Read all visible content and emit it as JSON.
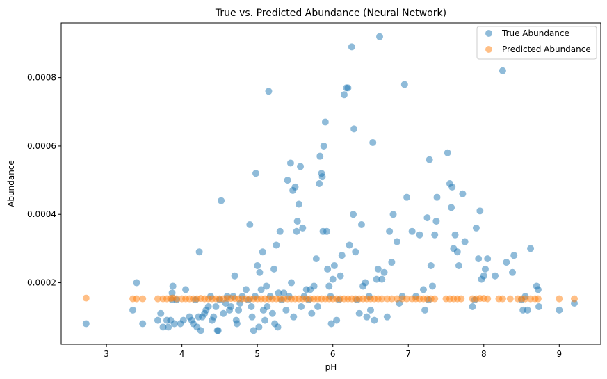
{
  "chart_data": {
    "type": "scatter",
    "title": "True vs. Predicted Abundance (Neural Network)",
    "xlabel": "pH",
    "ylabel": "Abundance",
    "xlim": [
      2.4,
      9.55
    ],
    "ylim": [
      2e-05,
      0.00096
    ],
    "xticks": [
      {
        "value": 3,
        "label": "3"
      },
      {
        "value": 4,
        "label": "4"
      },
      {
        "value": 5,
        "label": "5"
      },
      {
        "value": 6,
        "label": "6"
      },
      {
        "value": 7,
        "label": "7"
      },
      {
        "value": 8,
        "label": "8"
      },
      {
        "value": 9,
        "label": "9"
      }
    ],
    "yticks": [
      {
        "value": 0.0002,
        "label": "0.0002"
      },
      {
        "value": 0.0004,
        "label": "0.0004"
      },
      {
        "value": 0.0006,
        "label": "0.0006"
      },
      {
        "value": 0.0008,
        "label": "0.0008"
      }
    ],
    "grid": false,
    "legend_position": "top-right",
    "series": [
      {
        "name": "True Abundance",
        "color": "#1f77b4",
        "points": [
          [
            2.73,
            8e-05
          ],
          [
            3.35,
            0.00012
          ],
          [
            3.4,
            0.0002
          ],
          [
            3.48,
            8e-05
          ],
          [
            3.68,
            9e-05
          ],
          [
            3.72,
            0.00011
          ],
          [
            3.75,
            7e-05
          ],
          [
            3.8,
            9e-05
          ],
          [
            3.82,
            7e-05
          ],
          [
            3.85,
            9e-05
          ],
          [
            3.87,
            0.00015
          ],
          [
            3.87,
            0.00017
          ],
          [
            3.88,
            0.00019
          ],
          [
            3.9,
            8e-05
          ],
          [
            3.93,
            0.00015
          ],
          [
            3.98,
            8e-05
          ],
          [
            4.02,
            9e-05
          ],
          [
            4.05,
            0.00018
          ],
          [
            4.1,
            0.0001
          ],
          [
            4.13,
            9e-05
          ],
          [
            4.15,
            8e-05
          ],
          [
            4.18,
            0.00015
          ],
          [
            4.2,
            7e-05
          ],
          [
            4.22,
            0.0001
          ],
          [
            4.23,
            0.00029
          ],
          [
            4.25,
            6e-05
          ],
          [
            4.27,
            0.0001
          ],
          [
            4.3,
            0.00011
          ],
          [
            4.32,
            0.00012
          ],
          [
            4.35,
            0.00013
          ],
          [
            4.38,
            0.00016
          ],
          [
            4.4,
            9e-05
          ],
          [
            4.42,
            0.0001
          ],
          [
            4.45,
            0.00013
          ],
          [
            4.47,
            6e-05
          ],
          [
            4.48,
            6e-05
          ],
          [
            4.5,
            0.00015
          ],
          [
            4.52,
            0.00044
          ],
          [
            4.55,
            0.00011
          ],
          [
            4.58,
            0.00014
          ],
          [
            4.6,
            0.00016
          ],
          [
            4.63,
            0.00012
          ],
          [
            4.65,
            0.00013
          ],
          [
            4.68,
            0.00016
          ],
          [
            4.7,
            0.00022
          ],
          [
            4.72,
            9e-05
          ],
          [
            4.73,
            8e-05
          ],
          [
            4.75,
            0.00012
          ],
          [
            4.77,
            0.00014
          ],
          [
            4.8,
            0.00016
          ],
          [
            4.85,
            0.00018
          ],
          [
            4.88,
            0.00015
          ],
          [
            4.9,
            0.00037
          ],
          [
            4.92,
            0.00013
          ],
          [
            4.93,
            0.0001
          ],
          [
            4.95,
            6e-05
          ],
          [
            4.97,
            0.00016
          ],
          [
            4.98,
            0.00052
          ],
          [
            5.0,
            0.00025
          ],
          [
            5.02,
            7e-05
          ],
          [
            5.03,
            0.00023
          ],
          [
            5.05,
            0.00018
          ],
          [
            5.07,
            0.00029
          ],
          [
            5.08,
            0.00012
          ],
          [
            5.1,
            9e-05
          ],
          [
            5.12,
            0.00019
          ],
          [
            5.13,
            0.00013
          ],
          [
            5.15,
            0.00076
          ],
          [
            5.17,
            0.00016
          ],
          [
            5.2,
            0.00011
          ],
          [
            5.22,
            0.00024
          ],
          [
            5.23,
            8e-05
          ],
          [
            5.25,
            0.00031
          ],
          [
            5.27,
            7e-05
          ],
          [
            5.28,
            0.00017
          ],
          [
            5.3,
            0.00035
          ],
          [
            5.32,
            0.00015
          ],
          [
            5.35,
            0.00017
          ],
          [
            5.38,
            0.00012
          ],
          [
            5.4,
            0.0005
          ],
          [
            5.42,
            0.00016
          ],
          [
            5.44,
            0.00055
          ],
          [
            5.45,
            0.0002
          ],
          [
            5.47,
            0.00047
          ],
          [
            5.48,
            0.0001
          ],
          [
            5.5,
            0.00048
          ],
          [
            5.52,
            0.00035
          ],
          [
            5.53,
            0.00038
          ],
          [
            5.55,
            0.00043
          ],
          [
            5.57,
            0.00054
          ],
          [
            5.58,
            0.00013
          ],
          [
            5.6,
            0.00036
          ],
          [
            5.62,
            0.00016
          ],
          [
            5.65,
            0.00018
          ],
          [
            5.68,
            0.00015
          ],
          [
            5.7,
            0.00018
          ],
          [
            5.72,
            0.00011
          ],
          [
            5.75,
            0.00019
          ],
          [
            5.78,
            0.00027
          ],
          [
            5.8,
            0.00013
          ],
          [
            5.82,
            0.00049
          ],
          [
            5.83,
            0.00057
          ],
          [
            5.85,
            0.00052
          ],
          [
            5.86,
            0.00051
          ],
          [
            5.87,
            0.00035
          ],
          [
            5.88,
            0.0006
          ],
          [
            5.9,
            0.00067
          ],
          [
            5.92,
            0.00035
          ],
          [
            5.93,
            0.00024
          ],
          [
            5.95,
            0.00019
          ],
          [
            5.97,
            0.00016
          ],
          [
            5.98,
            8e-05
          ],
          [
            6.0,
            0.00021
          ],
          [
            6.02,
            0.00025
          ],
          [
            6.05,
            9e-05
          ],
          [
            6.08,
            0.00015
          ],
          [
            6.1,
            0.00022
          ],
          [
            6.12,
            0.00028
          ],
          [
            6.15,
            0.00075
          ],
          [
            6.18,
            0.00077
          ],
          [
            6.2,
            0.00077
          ],
          [
            6.22,
            0.00031
          ],
          [
            6.25,
            0.00089
          ],
          [
            6.27,
            0.0004
          ],
          [
            6.28,
            0.00065
          ],
          [
            6.3,
            0.00029
          ],
          [
            6.32,
            0.00015
          ],
          [
            6.35,
            0.00011
          ],
          [
            6.38,
            0.00037
          ],
          [
            6.4,
            0.00019
          ],
          [
            6.43,
            0.0002
          ],
          [
            6.45,
            0.0001
          ],
          [
            6.48,
            0.00016
          ],
          [
            6.5,
            0.00012
          ],
          [
            6.53,
            0.00061
          ],
          [
            6.55,
            9e-05
          ],
          [
            6.58,
            0.00021
          ],
          [
            6.6,
            0.00024
          ],
          [
            6.62,
            0.00092
          ],
          [
            6.65,
            0.00021
          ],
          [
            6.68,
            0.00023
          ],
          [
            6.72,
            0.0001
          ],
          [
            6.75,
            0.00035
          ],
          [
            6.78,
            0.00026
          ],
          [
            6.8,
            0.0004
          ],
          [
            6.85,
            0.00032
          ],
          [
            6.88,
            0.00014
          ],
          [
            6.92,
            0.00016
          ],
          [
            6.95,
            0.00078
          ],
          [
            6.98,
            0.00045
          ],
          [
            7.05,
            0.00035
          ],
          [
            7.1,
            0.00016
          ],
          [
            7.15,
            0.00034
          ],
          [
            7.2,
            0.00018
          ],
          [
            7.22,
            0.00012
          ],
          [
            7.25,
            0.00039
          ],
          [
            7.27,
            0.00015
          ],
          [
            7.28,
            0.00056
          ],
          [
            7.3,
            0.00025
          ],
          [
            7.32,
            0.00019
          ],
          [
            7.35,
            0.00034
          ],
          [
            7.37,
            0.00038
          ],
          [
            7.38,
            0.00045
          ],
          [
            7.52,
            0.00058
          ],
          [
            7.55,
            0.00049
          ],
          [
            7.57,
            0.00042
          ],
          [
            7.58,
            0.00048
          ],
          [
            7.6,
            0.0003
          ],
          [
            7.62,
            0.00034
          ],
          [
            7.65,
            0.00029
          ],
          [
            7.67,
            0.00025
          ],
          [
            7.72,
            0.00046
          ],
          [
            7.75,
            0.00032
          ],
          [
            7.85,
            0.00013
          ],
          [
            7.88,
            0.00015
          ],
          [
            7.9,
            0.00036
          ],
          [
            7.93,
            0.00027
          ],
          [
            7.95,
            0.00041
          ],
          [
            7.97,
            0.00021
          ],
          [
            8.0,
            0.00022
          ],
          [
            8.02,
            0.00024
          ],
          [
            8.05,
            0.00027
          ],
          [
            8.15,
            0.00022
          ],
          [
            8.25,
            0.00082
          ],
          [
            8.3,
            0.00026
          ],
          [
            8.38,
            0.00023
          ],
          [
            8.4,
            0.00028
          ],
          [
            8.5,
            0.00015
          ],
          [
            8.52,
            0.00012
          ],
          [
            8.55,
            0.00016
          ],
          [
            8.58,
            0.00012
          ],
          [
            8.62,
            0.0003
          ],
          [
            8.7,
            0.00019
          ],
          [
            8.72,
            0.00018
          ],
          [
            8.73,
            0.00013
          ],
          [
            9.0,
            0.00012
          ],
          [
            9.2,
            0.00014
          ]
        ]
      },
      {
        "name": "Predicted Abundance",
        "color": "#ff7f0e",
        "points": [
          [
            2.73,
            0.000155
          ],
          [
            3.35,
            0.000153
          ],
          [
            3.4,
            0.000153
          ],
          [
            3.48,
            0.000153
          ],
          [
            3.68,
            0.000153
          ],
          [
            3.75,
            0.000153
          ],
          [
            3.8,
            0.000153
          ],
          [
            3.85,
            0.000154
          ],
          [
            3.88,
            0.000155
          ],
          [
            3.93,
            0.000153
          ],
          [
            4.0,
            0.000153
          ],
          [
            4.05,
            0.000153
          ],
          [
            4.1,
            0.000153
          ],
          [
            4.15,
            0.000153
          ],
          [
            4.2,
            0.000153
          ],
          [
            4.25,
            0.000154
          ],
          [
            4.3,
            0.000153
          ],
          [
            4.35,
            0.000153
          ],
          [
            4.4,
            0.000153
          ],
          [
            4.45,
            0.000153
          ],
          [
            4.5,
            0.000153
          ],
          [
            4.55,
            0.000153
          ],
          [
            4.6,
            0.000154
          ],
          [
            4.65,
            0.000154
          ],
          [
            4.7,
            0.000154
          ],
          [
            4.75,
            0.000153
          ],
          [
            4.8,
            0.000153
          ],
          [
            4.85,
            0.000153
          ],
          [
            4.9,
            0.000153
          ],
          [
            4.95,
            0.000153
          ],
          [
            5.0,
            0.000153
          ],
          [
            5.05,
            0.000153
          ],
          [
            5.1,
            0.000153
          ],
          [
            5.15,
            0.000153
          ],
          [
            5.2,
            0.000153
          ],
          [
            5.25,
            0.000153
          ],
          [
            5.3,
            0.000153
          ],
          [
            5.35,
            0.000153
          ],
          [
            5.4,
            0.000153
          ],
          [
            5.45,
            0.000153
          ],
          [
            5.5,
            0.000153
          ],
          [
            5.55,
            0.000153
          ],
          [
            5.6,
            0.000153
          ],
          [
            5.65,
            0.000153
          ],
          [
            5.7,
            0.000153
          ],
          [
            5.75,
            0.000153
          ],
          [
            5.8,
            0.000153
          ],
          [
            5.85,
            0.000153
          ],
          [
            5.9,
            0.000153
          ],
          [
            5.95,
            0.000153
          ],
          [
            6.0,
            0.000153
          ],
          [
            6.05,
            0.000153
          ],
          [
            6.1,
            0.000153
          ],
          [
            6.15,
            0.000153
          ],
          [
            6.2,
            0.000153
          ],
          [
            6.25,
            0.000153
          ],
          [
            6.3,
            0.000153
          ],
          [
            6.35,
            0.000153
          ],
          [
            6.4,
            0.000153
          ],
          [
            6.45,
            0.000153
          ],
          [
            6.5,
            0.000153
          ],
          [
            6.55,
            0.000153
          ],
          [
            6.6,
            0.000153
          ],
          [
            6.65,
            0.000153
          ],
          [
            6.72,
            0.000153
          ],
          [
            6.78,
            0.000153
          ],
          [
            6.85,
            0.000153
          ],
          [
            6.92,
            0.000153
          ],
          [
            6.98,
            0.000153
          ],
          [
            7.05,
            0.000153
          ],
          [
            7.1,
            0.000153
          ],
          [
            7.15,
            0.000153
          ],
          [
            7.2,
            0.000153
          ],
          [
            7.25,
            0.000153
          ],
          [
            7.3,
            0.000153
          ],
          [
            7.35,
            0.000153
          ],
          [
            7.5,
            0.000153
          ],
          [
            7.55,
            0.000153
          ],
          [
            7.6,
            0.000153
          ],
          [
            7.65,
            0.000153
          ],
          [
            7.7,
            0.000153
          ],
          [
            7.85,
            0.000153
          ],
          [
            7.9,
            0.000153
          ],
          [
            7.95,
            0.000154
          ],
          [
            8.0,
            0.000154
          ],
          [
            8.05,
            0.000153
          ],
          [
            8.2,
            0.000153
          ],
          [
            8.25,
            0.000153
          ],
          [
            8.35,
            0.000153
          ],
          [
            8.45,
            0.000153
          ],
          [
            8.5,
            0.000153
          ],
          [
            8.55,
            0.000153
          ],
          [
            8.62,
            0.000153
          ],
          [
            8.68,
            0.000153
          ],
          [
            8.72,
            0.000153
          ],
          [
            9.0,
            0.000153
          ],
          [
            9.2,
            0.000153
          ]
        ]
      }
    ]
  }
}
